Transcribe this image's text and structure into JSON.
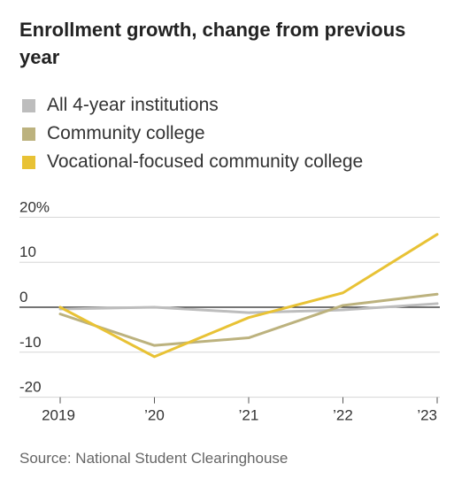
{
  "chart_data": {
    "type": "line",
    "title": "Enrollment growth, change from previous year",
    "x": [
      "2019",
      "’20",
      "’21",
      "’22",
      "’23"
    ],
    "y_ticks": [
      {
        "value": 20,
        "label": "20%"
      },
      {
        "value": 10,
        "label": "10"
      },
      {
        "value": 0,
        "label": "0"
      },
      {
        "value": -10,
        "label": "-10"
      },
      {
        "value": -20,
        "label": "-20"
      }
    ],
    "ylim": [
      -20,
      20
    ],
    "grid": true,
    "legend_position": "top-left",
    "series": [
      {
        "name": "All 4-year institutions",
        "color": "#bdbdbd",
        "values": [
          -0.4,
          0,
          -1.2,
          -0.6,
          0.8
        ]
      },
      {
        "name": "Community college",
        "color": "#bcb27e",
        "values": [
          -1.5,
          -8.5,
          -6.8,
          0.4,
          2.9
        ]
      },
      {
        "name": "Vocational-focused community college",
        "color": "#e8c235",
        "values": [
          0,
          -11,
          -2.3,
          3.2,
          16.2
        ]
      }
    ]
  },
  "source": "Source: National Student Clearinghouse"
}
